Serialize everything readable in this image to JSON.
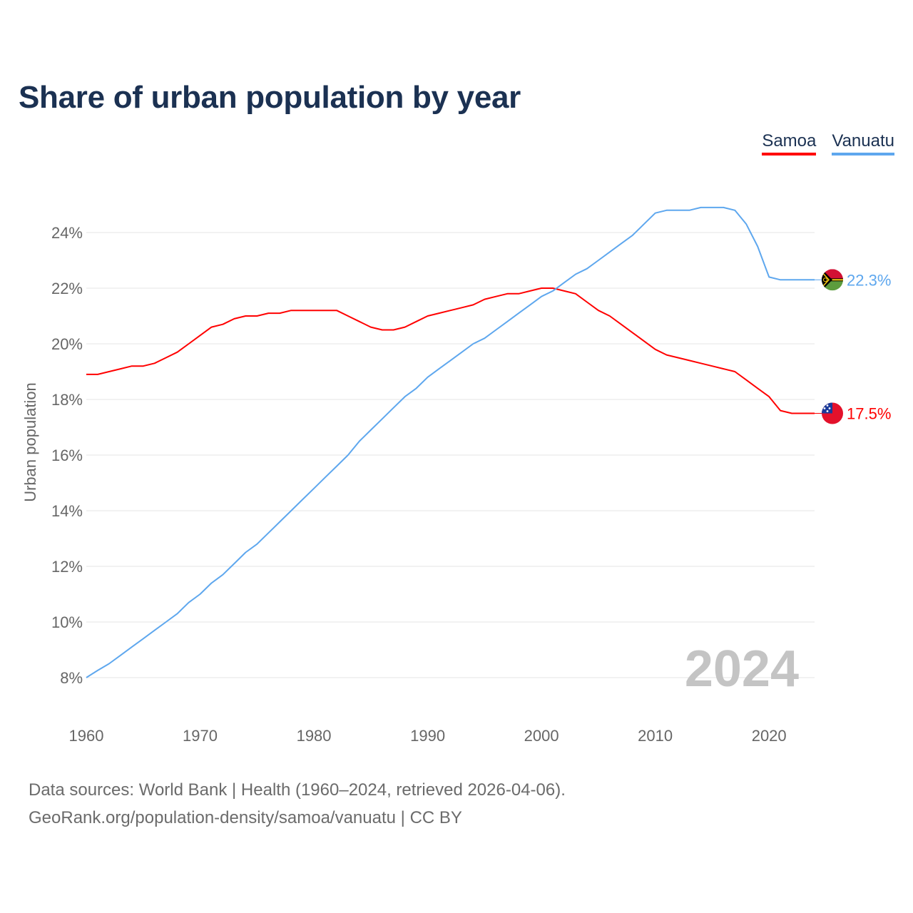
{
  "chart_data": {
    "type": "line",
    "title": "Share of urban population by year",
    "xlabel": "",
    "ylabel": "Urban population",
    "xlim": [
      1960,
      2024
    ],
    "ylim": [
      7,
      25.5
    ],
    "yticks": [
      8,
      10,
      12,
      14,
      16,
      18,
      20,
      22,
      24
    ],
    "ytick_labels": [
      "8%",
      "10%",
      "12%",
      "14%",
      "16%",
      "18%",
      "20%",
      "22%",
      "24%"
    ],
    "xticks": [
      1960,
      1970,
      1980,
      1990,
      2000,
      2010,
      2020
    ],
    "xtick_labels": [
      "1960",
      "1970",
      "1980",
      "1990",
      "2000",
      "2010",
      "2020"
    ],
    "grid": true,
    "legend_placement": "top-right",
    "current_year_label": "2024",
    "x_start": 1960,
    "series": [
      {
        "name": "Samoa",
        "color": "#ff0000",
        "end_label": "17.5%",
        "values": [
          18.9,
          18.9,
          19.0,
          19.1,
          19.2,
          19.2,
          19.3,
          19.5,
          19.7,
          20.0,
          20.3,
          20.6,
          20.7,
          20.9,
          21.0,
          21.0,
          21.1,
          21.1,
          21.2,
          21.2,
          21.2,
          21.2,
          21.2,
          21.0,
          20.8,
          20.6,
          20.5,
          20.5,
          20.6,
          20.8,
          21.0,
          21.1,
          21.2,
          21.3,
          21.4,
          21.6,
          21.7,
          21.8,
          21.8,
          21.9,
          22.0,
          22.0,
          21.9,
          21.8,
          21.5,
          21.2,
          21.0,
          20.7,
          20.4,
          20.1,
          19.8,
          19.6,
          19.5,
          19.4,
          19.3,
          19.2,
          19.1,
          19.0,
          18.7,
          18.4,
          18.1,
          17.6,
          17.5,
          17.5,
          17.5
        ]
      },
      {
        "name": "Vanuatu",
        "color": "#5ea7ee",
        "end_label": "22.3%",
        "values": [
          8.0,
          8.26,
          8.5,
          8.8,
          9.1,
          9.4,
          9.7,
          10.0,
          10.3,
          10.7,
          11.0,
          11.4,
          11.7,
          12.1,
          12.5,
          12.8,
          13.2,
          13.6,
          14.0,
          14.4,
          14.8,
          15.2,
          15.6,
          16.0,
          16.5,
          16.9,
          17.3,
          17.7,
          18.1,
          18.4,
          18.8,
          19.1,
          19.4,
          19.7,
          20.0,
          20.2,
          20.5,
          20.8,
          21.1,
          21.4,
          21.7,
          21.9,
          22.2,
          22.5,
          22.7,
          23.0,
          23.3,
          23.6,
          23.9,
          24.3,
          24.7,
          24.8,
          24.8,
          24.8,
          24.9,
          24.9,
          24.9,
          24.8,
          24.3,
          23.5,
          22.4,
          22.3,
          22.3,
          22.3,
          22.3
        ]
      }
    ]
  },
  "footer": {
    "line1": "Data sources: World Bank | Health (1960–2024, retrieved 2026-04-06).",
    "line2": "GeoRank.org/population-density/samoa/vanuatu | CC BY"
  }
}
